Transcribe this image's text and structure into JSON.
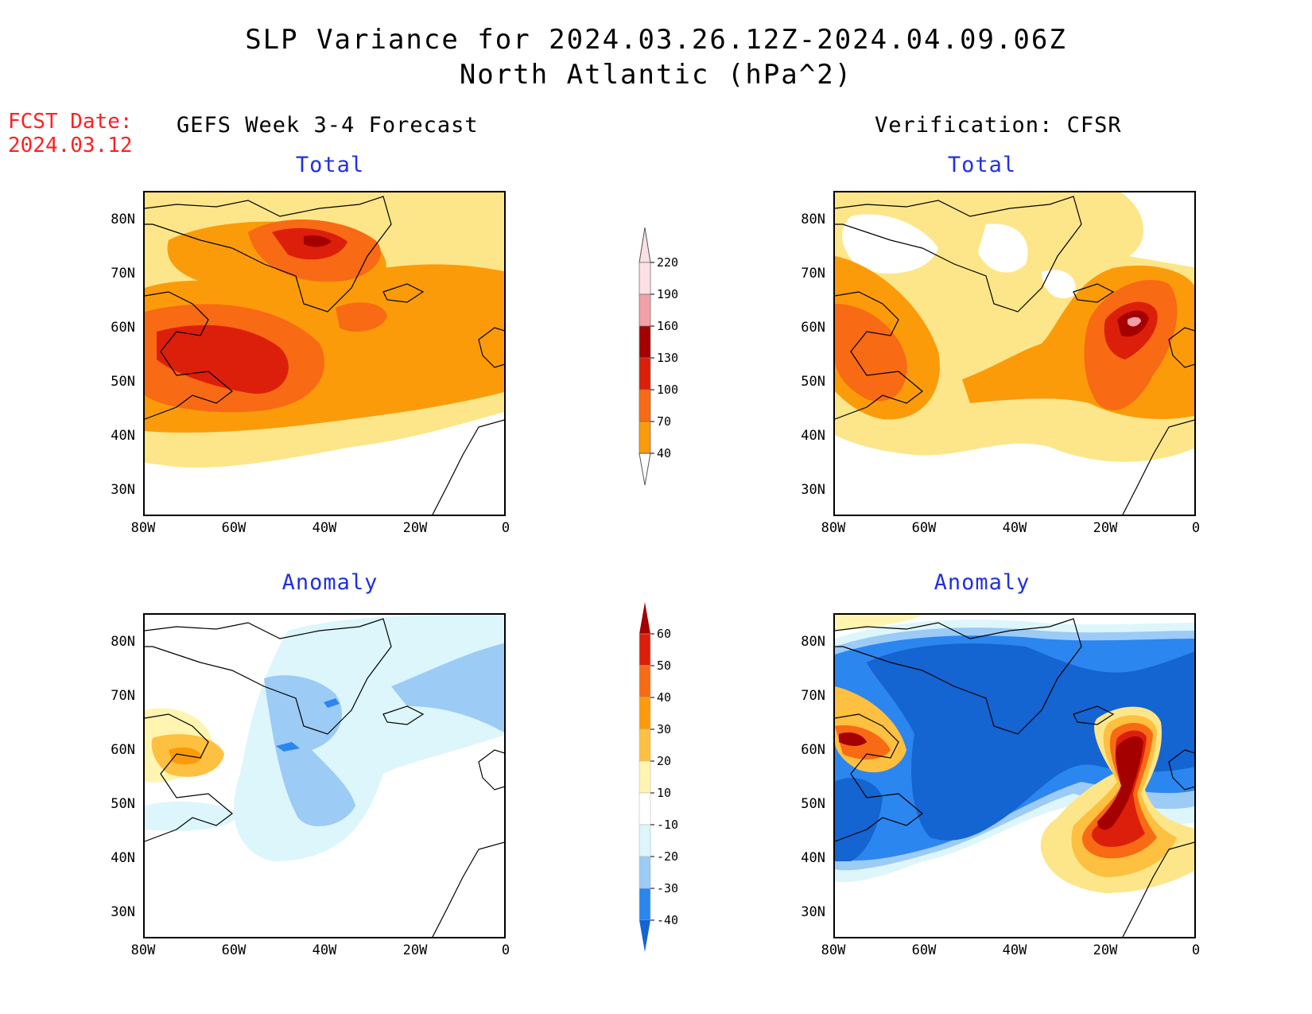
{
  "title": {
    "line1": "SLP Variance for 2024.03.26.12Z-2024.04.09.06Z",
    "line2": "North Atlantic (hPa^2)"
  },
  "fcst_date": {
    "label": "FCST Date:",
    "value": "2024.03.12"
  },
  "columns": {
    "left": "GEFS Week 3-4 Forecast",
    "right": "Verification: CFSR"
  },
  "panel_titles": {
    "total": "Total",
    "anomaly": "Anomaly"
  },
  "axes": {
    "lat_labels": [
      "80N",
      "70N",
      "60N",
      "50N",
      "40N",
      "30N"
    ],
    "lon_labels": [
      "80W",
      "60W",
      "40W",
      "20W",
      "0"
    ]
  },
  "colorbars": {
    "total": {
      "levels": [
        "40",
        "70",
        "100",
        "130",
        "160",
        "190",
        "220"
      ],
      "colors": [
        "#fde68a",
        "#fb9b0a",
        "#f86a14",
        "#dc1f0a",
        "#a50000",
        "#f2a0a8",
        "#fde0e4"
      ]
    },
    "anomaly": {
      "levels": [
        "-40",
        "-30",
        "-20",
        "-10",
        "10",
        "20",
        "30",
        "40",
        "50",
        "60"
      ],
      "colors": [
        "#1464d2",
        "#2b86ef",
        "#9ccbf6",
        "#ddf6fb",
        "#ffffff",
        "#fff5b0",
        "#fdc040",
        "#fb9b0a",
        "#f86a14",
        "#dc1f0a",
        "#a50000"
      ]
    }
  },
  "colors": {
    "title_text": "#000000",
    "fcst_text": "#ff2020",
    "subtitle_text": "#2030e0"
  }
}
